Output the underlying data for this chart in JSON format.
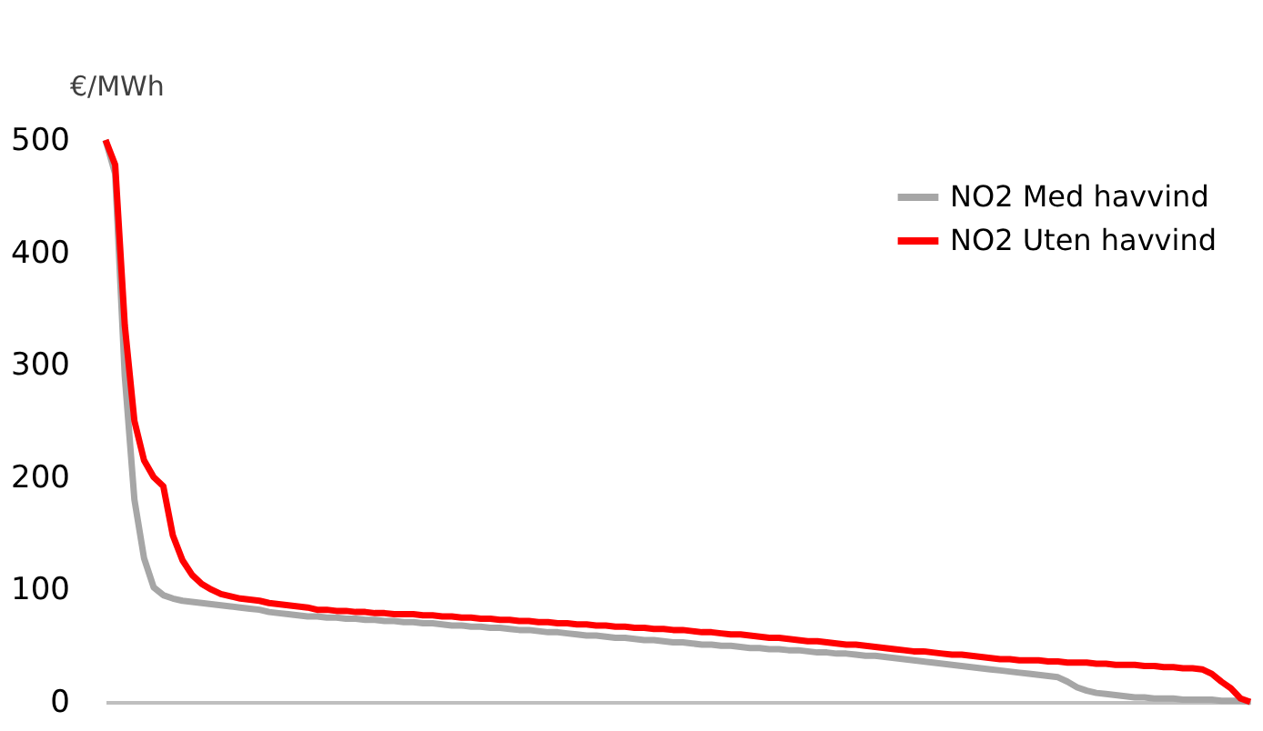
{
  "chart_data": {
    "type": "line",
    "ylabel": "€/MWh",
    "categories": [
      null,
      null,
      null,
      null,
      null,
      null,
      null,
      null,
      null,
      null,
      null,
      null,
      null,
      null,
      null,
      null,
      null,
      null,
      null,
      null,
      null,
      null,
      null,
      null,
      null,
      null,
      null,
      null,
      null,
      null,
      null,
      null,
      null,
      null,
      null,
      null,
      null,
      null,
      null,
      null,
      null,
      null,
      null,
      null,
      null,
      null,
      null,
      null,
      null,
      null,
      null,
      null,
      null,
      null,
      null,
      null,
      null,
      null,
      null,
      null,
      null,
      null,
      null,
      null,
      null,
      null,
      null,
      null,
      null,
      null,
      null,
      null,
      null,
      null,
      null,
      null,
      null,
      null,
      null,
      null,
      null,
      null,
      null,
      null,
      null,
      null,
      null,
      null,
      null,
      null,
      null,
      null,
      null,
      null,
      null,
      null,
      null,
      null,
      null,
      null,
      null,
      null,
      null,
      null,
      null,
      null,
      null,
      null,
      null,
      null,
      null,
      null,
      null,
      null,
      null,
      null,
      null,
      null,
      null,
      null
    ],
    "series": [
      {
        "name": "NO2 Med havvind",
        "color": "#a6a6a6",
        "values": [
          500,
          470,
          290,
          180,
          128,
          102,
          95,
          92,
          90,
          89,
          88,
          87,
          86,
          85,
          84,
          83,
          82,
          80,
          79,
          78,
          77,
          76,
          76,
          75,
          75,
          74,
          74,
          73,
          73,
          72,
          72,
          71,
          71,
          70,
          70,
          69,
          68,
          68,
          67,
          67,
          66,
          66,
          65,
          64,
          64,
          63,
          62,
          62,
          61,
          60,
          59,
          59,
          58,
          57,
          57,
          56,
          55,
          55,
          54,
          53,
          53,
          52,
          51,
          51,
          50,
          50,
          49,
          48,
          48,
          47,
          47,
          46,
          46,
          45,
          44,
          44,
          43,
          43,
          42,
          41,
          41,
          40,
          39,
          38,
          37,
          36,
          35,
          34,
          33,
          32,
          31,
          30,
          29,
          28,
          27,
          26,
          25,
          24,
          23,
          22,
          18,
          13,
          10,
          8,
          7,
          6,
          5,
          4,
          4,
          3,
          3,
          3,
          2,
          2,
          2,
          2,
          1,
          1,
          1,
          0
        ]
      },
      {
        "name": "NO2 Uten havvind",
        "color": "#ff0000",
        "values": [
          500,
          478,
          335,
          250,
          215,
          200,
          192,
          148,
          126,
          113,
          105,
          100,
          96,
          94,
          92,
          91,
          90,
          88,
          87,
          86,
          85,
          84,
          82,
          82,
          81,
          81,
          80,
          80,
          79,
          79,
          78,
          78,
          78,
          77,
          77,
          76,
          76,
          75,
          75,
          74,
          74,
          73,
          73,
          72,
          72,
          71,
          71,
          70,
          70,
          69,
          69,
          68,
          68,
          67,
          67,
          66,
          66,
          65,
          65,
          64,
          64,
          63,
          62,
          62,
          61,
          60,
          60,
          59,
          58,
          57,
          57,
          56,
          55,
          54,
          54,
          53,
          52,
          51,
          51,
          50,
          49,
          48,
          47,
          46,
          45,
          45,
          44,
          43,
          42,
          42,
          41,
          40,
          39,
          38,
          38,
          37,
          37,
          37,
          36,
          36,
          35,
          35,
          35,
          34,
          34,
          33,
          33,
          33,
          32,
          32,
          31,
          31,
          30,
          30,
          29,
          25,
          18,
          12,
          3,
          0
        ]
      }
    ],
    "ylim": [
      0,
      500
    ],
    "yticks": [
      0,
      100,
      200,
      300,
      400,
      500
    ],
    "grid": false,
    "legend": "top right",
    "marker": "none",
    "line_style": "solid"
  }
}
